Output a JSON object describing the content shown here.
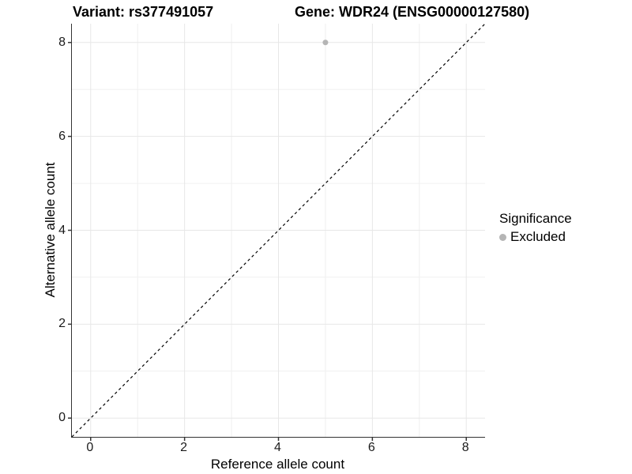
{
  "header": {
    "title_left": "Variant: rs377491057",
    "title_right": "Gene: WDR24 (ENSG00000127580)"
  },
  "chart_data": {
    "type": "scatter",
    "xlabel": "Reference allele count",
    "ylabel": "Alternative allele count",
    "xlim": [
      -0.4,
      8.4
    ],
    "ylim": [
      -0.4,
      8.4
    ],
    "x_major_ticks": [
      0,
      2,
      4,
      6,
      8
    ],
    "y_major_ticks": [
      0,
      2,
      4,
      6,
      8
    ],
    "x_minor_ticks": [
      1,
      3,
      5,
      7
    ],
    "y_minor_ticks": [
      1,
      3,
      5,
      7
    ],
    "grid": true,
    "points": [
      {
        "x": 5,
        "y": 8,
        "series": "Excluded"
      }
    ],
    "reference_line": {
      "type": "identity",
      "from": [
        -0.4,
        -0.4
      ],
      "to": [
        8.4,
        8.4
      ],
      "style": "dashed",
      "color": "#000000"
    },
    "legend": {
      "title": "Significance",
      "position": "right",
      "entries": [
        {
          "label": "Excluded",
          "color": "#b5b5b5"
        }
      ]
    },
    "colors": {
      "grid_major": "#e7e7e7",
      "grid_minor": "#f0f0f0",
      "axis_line": "#333333",
      "point": "#b5b5b5",
      "background": "#ffffff"
    }
  }
}
